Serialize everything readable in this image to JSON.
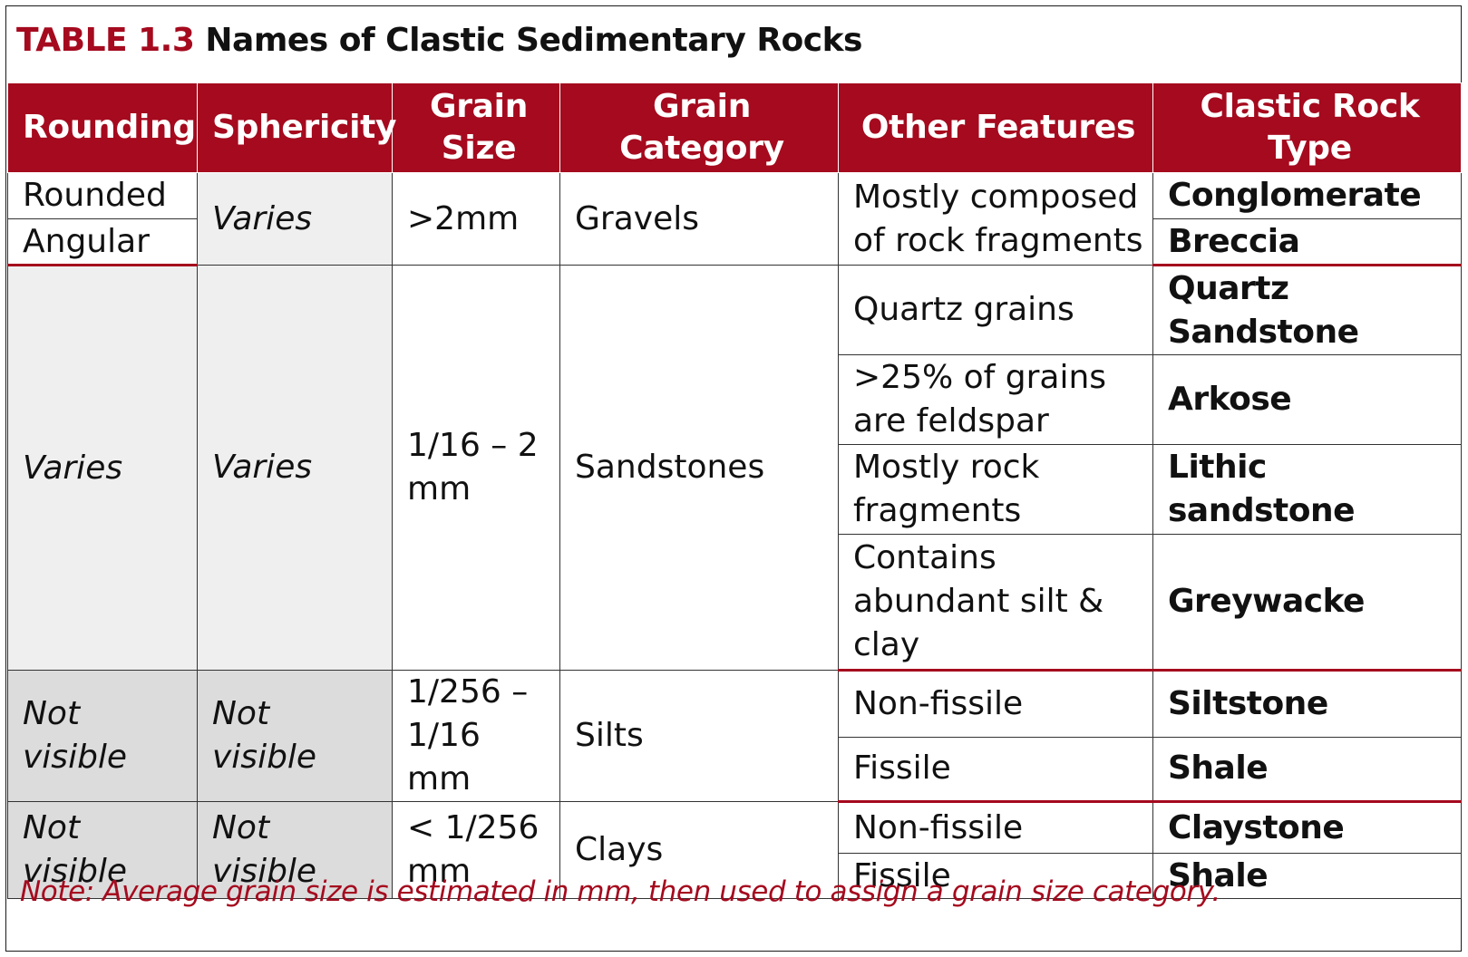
{
  "title": {
    "label": "TABLE 1.3",
    "text": "Names of Clastic Sedimentary Rocks"
  },
  "headers": [
    "Rounding",
    "Sphericity",
    "Grain Size",
    "Grain Category",
    "Other Features",
    "Clastic Rock Type"
  ],
  "gravels": {
    "rounding_1": "Rounded",
    "rounding_2": "Angular",
    "sphericity": "Varies",
    "grain_size": ">2mm",
    "category": "Gravels",
    "features": "Mostly composed of rock fragments",
    "rock_1": "Conglomerate",
    "rock_2": "Breccia"
  },
  "sandstones": {
    "rounding": "Varies",
    "sphericity": "Varies",
    "grain_size": "1/16 – 2 mm",
    "category": "Sandstones",
    "rows": [
      {
        "features": "Quartz grains",
        "rock": "Quartz Sandstone"
      },
      {
        "features": ">25% of grains are feldspar",
        "rock": "Arkose"
      },
      {
        "features": "Mostly rock fragments",
        "rock": "Lithic sandstone"
      },
      {
        "features": "Contains abundant silt & clay",
        "rock": "Greywacke"
      }
    ]
  },
  "silts": {
    "rounding": "Not visible",
    "sphericity": "Not visible",
    "grain_size": "1/256 – 1/16 mm",
    "category": "Silts",
    "rows": [
      {
        "features": "Non-fissile",
        "rock": "Siltstone"
      },
      {
        "features": "Fissile",
        "rock": "Shale"
      }
    ]
  },
  "clays": {
    "rounding": "Not visible",
    "sphericity": "Not visible",
    "grain_size": "< 1/256 mm",
    "category": "Clays",
    "rows": [
      {
        "features": "Non-fissile",
        "rock": "Claystone"
      },
      {
        "features": "Fissile",
        "rock": "Shale"
      }
    ]
  },
  "note": "Note: Average grain size is estimated in mm, then used to assign a grain size category.",
  "colors": {
    "accent": "#a50a1e",
    "shade": "#efefef",
    "shade_dark": "#dcdcdc"
  }
}
